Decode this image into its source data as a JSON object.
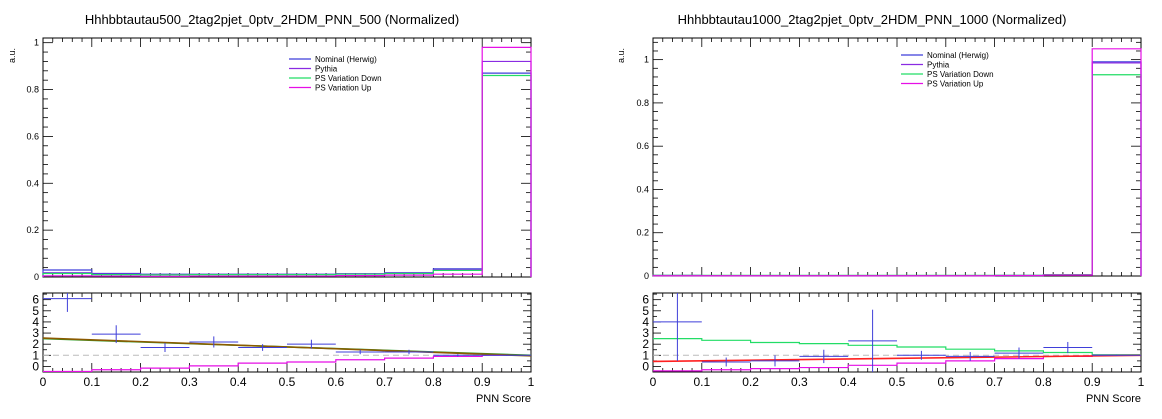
{
  "chart_data": [
    {
      "type": "line",
      "title": "Hhhbbtautau500_2tag2pjet_0ptv_2HDM_PNN_500 (Normalized)",
      "ylabel": "a.u.",
      "xlabel": "PNN Score",
      "x_edges": [
        0,
        0.1,
        0.2,
        0.3,
        0.4,
        0.5,
        0.6,
        0.7,
        0.8,
        0.9,
        1.0
      ],
      "xlim": [
        0,
        1
      ],
      "ylim": [
        0,
        1.02
      ],
      "yticks": [
        0,
        0.2,
        0.4,
        0.6,
        0.8,
        1
      ],
      "xticks": [
        0,
        0.1,
        0.2,
        0.3,
        0.4,
        0.5,
        0.6,
        0.7,
        0.8,
        0.9,
        1
      ],
      "legend_position": "top-right",
      "series": [
        {
          "name": "Nominal (Herwig)",
          "color": "#3f3fd9",
          "values": [
            0.03,
            0.015,
            0.012,
            0.012,
            0.012,
            0.012,
            0.014,
            0.018,
            0.035,
            0.87
          ]
        },
        {
          "name": "Pythia",
          "color": "#8a2be2",
          "values": [
            0.018,
            0.012,
            0.01,
            0.011,
            0.011,
            0.011,
            0.013,
            0.016,
            0.03,
            0.92
          ]
        },
        {
          "name": "PS Variation Down",
          "color": "#22dd66",
          "values": [
            0.015,
            0.01,
            0.009,
            0.01,
            0.01,
            0.01,
            0.012,
            0.015,
            0.028,
            0.86
          ]
        },
        {
          "name": "PS Variation Up",
          "color": "#e60fe6",
          "values": [
            0.005,
            0.004,
            0.003,
            0.004,
            0.004,
            0.004,
            0.006,
            0.008,
            0.012,
            0.98
          ]
        }
      ],
      "ratio": {
        "ylim": [
          -0.5,
          6.6
        ],
        "yticks": [
          0,
          1,
          2,
          3,
          4,
          5,
          6
        ],
        "points": {
          "color": "#3f3fd9",
          "values": [
            6.1,
            2.9,
            1.7,
            2.2,
            1.7,
            2.0,
            1.3,
            1.3,
            1.0,
            1.0
          ],
          "errors": [
            1.2,
            0.8,
            0.4,
            0.5,
            0.3,
            0.4,
            0.2,
            0.2,
            0.1,
            0.05
          ]
        },
        "up_values": [
          -0.45,
          -0.3,
          -0.15,
          0.05,
          0.3,
          0.4,
          0.6,
          0.75,
          0.9,
          1.0
        ],
        "fit_olive": [
          [
            0,
            2.55
          ],
          [
            1,
            0.95
          ]
        ],
        "fit_green": [
          [
            0,
            2.5
          ],
          [
            1,
            1.0
          ]
        ],
        "reference": 1
      }
    },
    {
      "type": "line",
      "title": "Hhhbbtautau1000_2tag2pjet_0ptv_2HDM_PNN_1000 (Normalized)",
      "ylabel": "a.u.",
      "xlabel": "PNN Score",
      "x_edges": [
        0,
        0.1,
        0.2,
        0.3,
        0.4,
        0.5,
        0.6,
        0.7,
        0.8,
        0.9,
        1.0
      ],
      "xlim": [
        0,
        1
      ],
      "ylim": [
        0,
        1.1
      ],
      "yticks": [
        0,
        0.2,
        0.4,
        0.6,
        0.8,
        1
      ],
      "xticks": [
        0,
        0.1,
        0.2,
        0.3,
        0.4,
        0.5,
        0.6,
        0.7,
        0.8,
        0.9,
        1
      ],
      "legend_position": "top-right",
      "series": [
        {
          "name": "Nominal (Herwig)",
          "color": "#3f3fd9",
          "values": [
            0.002,
            0.002,
            0.002,
            0.002,
            0.002,
            0.002,
            0.002,
            0.002,
            0.005,
            0.99
          ]
        },
        {
          "name": "Pythia",
          "color": "#8a2be2",
          "values": [
            0.003,
            0.002,
            0.002,
            0.002,
            0.002,
            0.002,
            0.002,
            0.003,
            0.006,
            0.985
          ]
        },
        {
          "name": "PS Variation Down",
          "color": "#22dd66",
          "values": [
            0.003,
            0.003,
            0.003,
            0.003,
            0.003,
            0.003,
            0.003,
            0.003,
            0.006,
            0.93
          ]
        },
        {
          "name": "PS Variation Up",
          "color": "#e60fe6",
          "values": [
            0.001,
            0.001,
            0.001,
            0.001,
            0.001,
            0.001,
            0.001,
            0.002,
            0.004,
            1.05
          ]
        }
      ],
      "ratio": {
        "ylim": [
          -0.5,
          6.6
        ],
        "yticks": [
          0,
          1,
          2,
          3,
          4,
          5,
          6
        ],
        "points": {
          "color": "#3f3fd9",
          "values": [
            4.0,
            0.4,
            0.5,
            0.9,
            2.3,
            1.0,
            0.9,
            1.2,
            1.7,
            1.0
          ],
          "errors": [
            3.5,
            0.4,
            0.5,
            0.6,
            2.8,
            0.4,
            0.4,
            0.5,
            0.5,
            0.05
          ]
        },
        "green_values": [
          2.5,
          2.35,
          2.15,
          2.05,
          1.9,
          1.75,
          1.55,
          1.4,
          1.25,
          1.05
        ],
        "up_values": [
          -0.4,
          -0.3,
          -0.2,
          -0.1,
          0.1,
          0.3,
          0.5,
          0.7,
          0.9,
          1.0
        ],
        "fit_red": [
          [
            0,
            0.45
          ],
          [
            1,
            1.0
          ]
        ],
        "reference": 1
      }
    }
  ]
}
